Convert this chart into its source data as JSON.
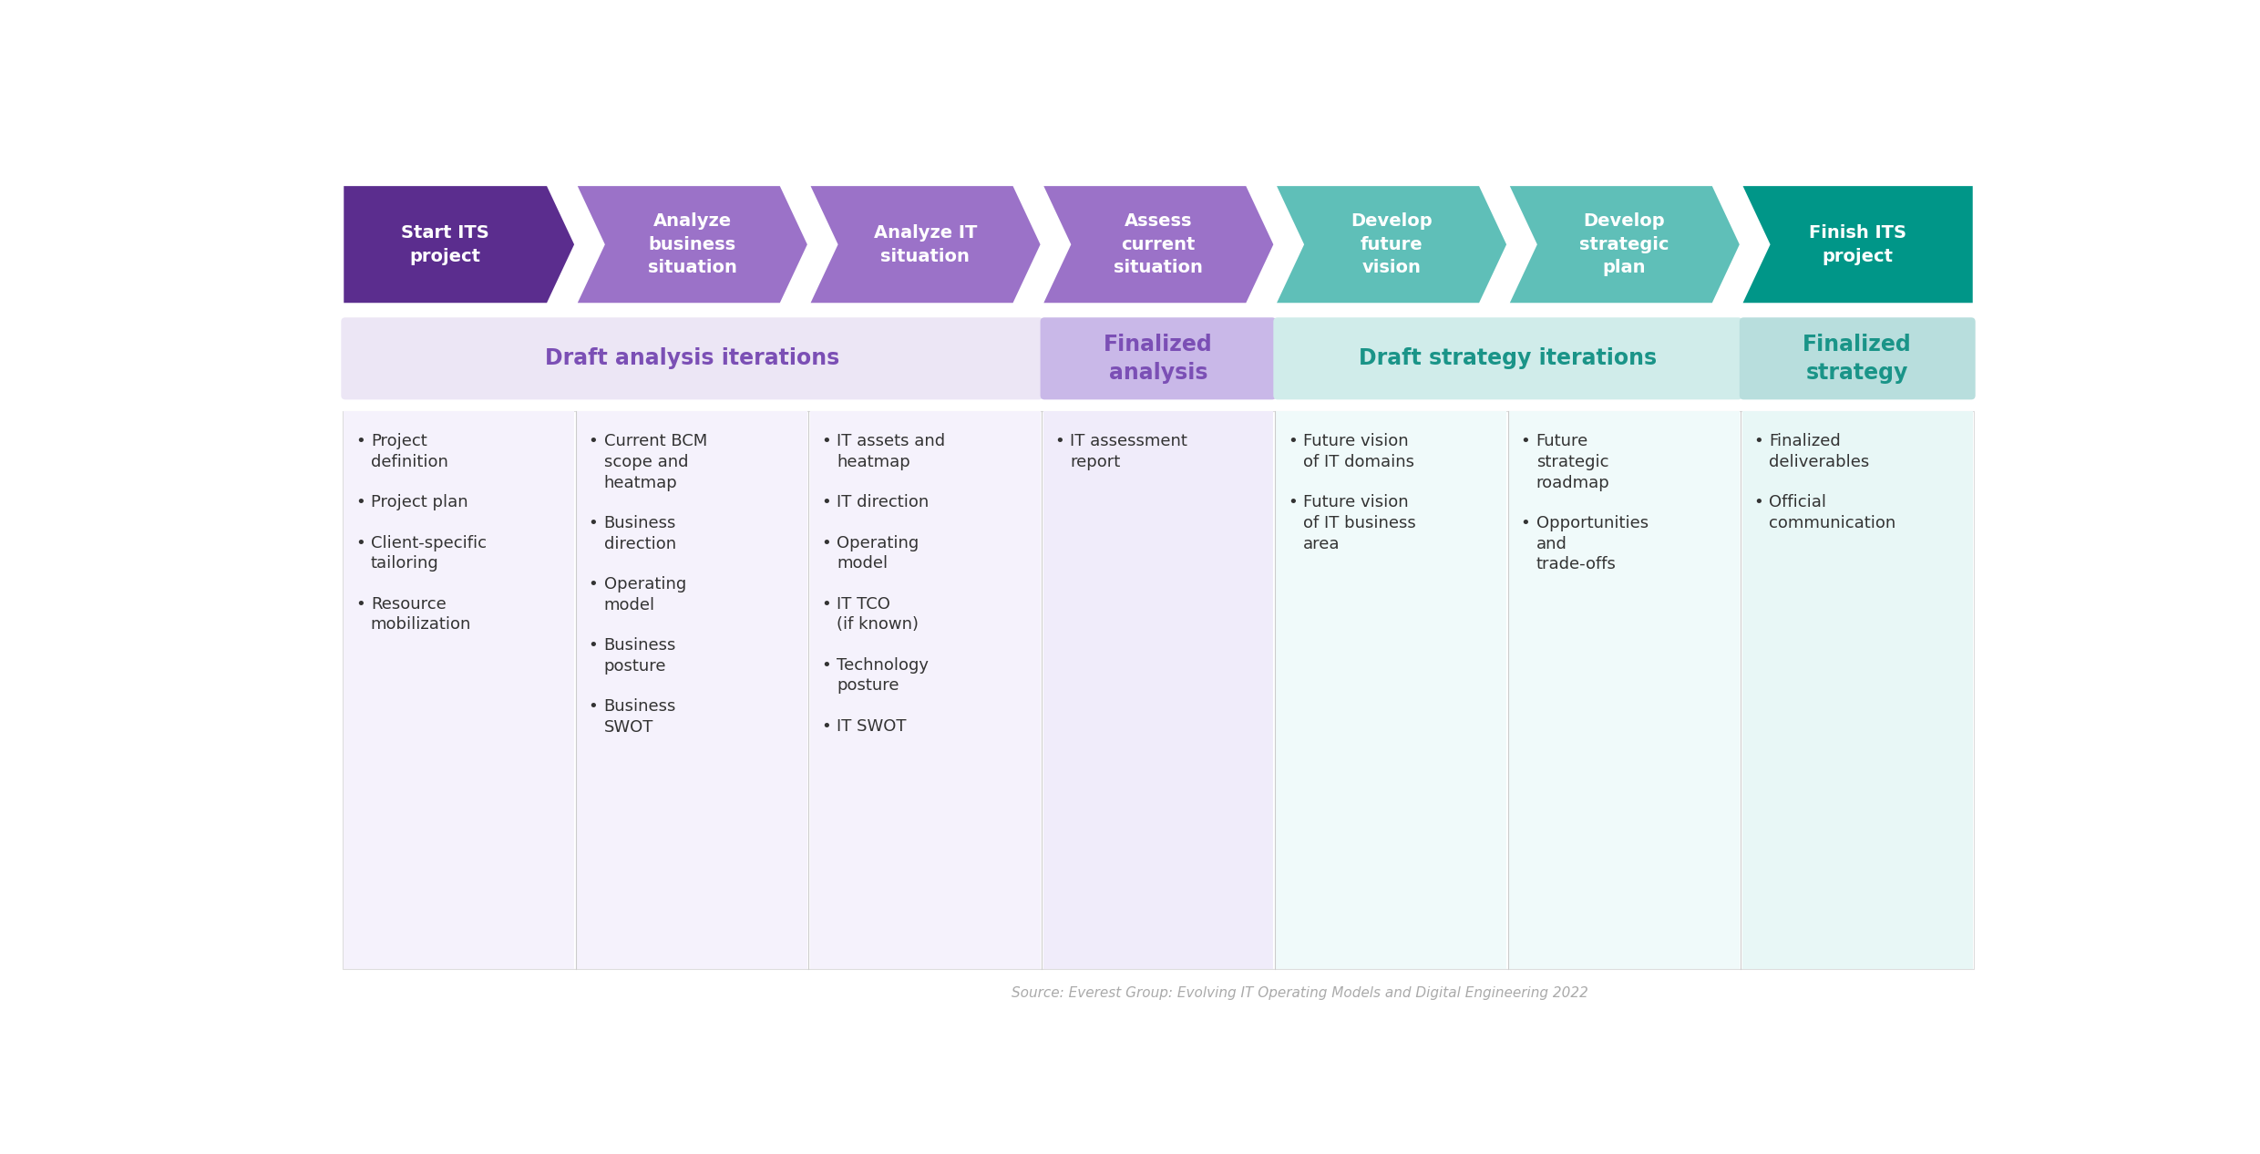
{
  "arrows": [
    {
      "label": "Start ITS\nproject",
      "color": "#5b2d8e"
    },
    {
      "label": "Analyze\nbusiness\nsituation",
      "color": "#9b72c8"
    },
    {
      "label": "Analyze IT\nsituation",
      "color": "#9b72c8"
    },
    {
      "label": "Assess\ncurrent\nsituation",
      "color": "#9b72c8"
    },
    {
      "label": "Develop\nfuture\nvision",
      "color": "#5fbfb8"
    },
    {
      "label": "Develop\nstrategic\nplan",
      "color": "#5fbfb8"
    },
    {
      "label": "Finish ITS\nproject",
      "color": "#009688"
    }
  ],
  "section_boxes": [
    {
      "label": "Draft analysis iterations",
      "color": "#ece6f5",
      "label_color": "#7b4fb5",
      "span": [
        0,
        3
      ]
    },
    {
      "label": "Finalized\nanalysis",
      "color": "#c9b8e8",
      "label_color": "#7b4fb5",
      "span": [
        3,
        4
      ]
    },
    {
      "label": "Draft strategy iterations",
      "color": "#d0ecea",
      "label_color": "#1a9488",
      "span": [
        4,
        6
      ]
    },
    {
      "label": "Finalized\nstrategy",
      "color": "#b8dedd",
      "label_color": "#1a9488",
      "span": [
        6,
        7
      ]
    }
  ],
  "columns": [
    {
      "items": [
        "Project\ndefinition",
        "Project plan",
        "Client-specific\ntailoring",
        "Resource\nmobilization"
      ]
    },
    {
      "items": [
        "Current BCM\nscope and\nheatmap",
        "Business\ndirection",
        "Operating\nmodel",
        "Business\nposture",
        "Business\nSWOT"
      ]
    },
    {
      "items": [
        "IT assets and\nheatmap",
        "IT direction",
        "Operating\nmodel",
        "IT TCO\n(if known)",
        "Technology\nposture",
        "IT SWOT"
      ]
    },
    {
      "items": [
        "IT assessment\nreport"
      ]
    },
    {
      "items": [
        "Future vision\nof IT domains",
        "Future vision\nof IT business\narea"
      ]
    },
    {
      "items": [
        "Future\nstrategic\nroadmap",
        "Opportunities\nand\ntrade-offs"
      ]
    },
    {
      "items": [
        "Finalized\ndeliverables",
        "Official\ncommunication"
      ]
    }
  ],
  "source_text": "Source: Everest Group: Evolving IT Operating Models and Digital Engineering 2022",
  "bg_color": "#ffffff",
  "arrow_text_color": "#ffffff",
  "bullet_text_color": "#333333",
  "arrow_fontsize": 14,
  "section_label_fontsize": 17,
  "bullet_fontsize": 13
}
